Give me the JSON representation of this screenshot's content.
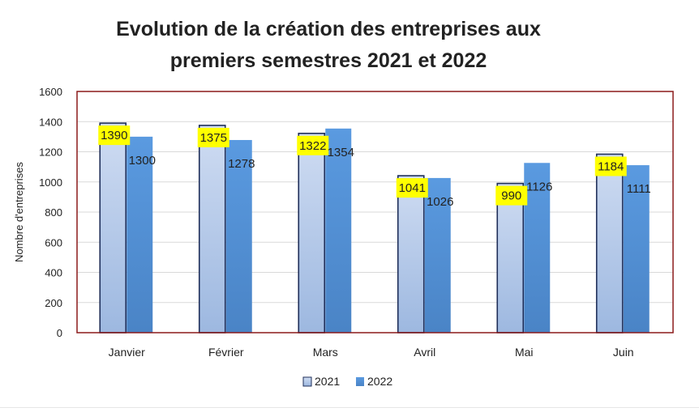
{
  "chart_data": {
    "type": "bar",
    "title_lines": [
      "Evolution de la création des entreprises aux",
      "premiers semestres 2021 et 2022"
    ],
    "ylabel": "Nombre d'entreprises",
    "xlabel": "",
    "categories": [
      "Janvier",
      "Février",
      "Mars",
      "Avril",
      "Mai",
      "Juin"
    ],
    "series": [
      {
        "name": "2021",
        "values": [
          1390,
          1375,
          1322,
          1041,
          990,
          1184
        ],
        "color": "#b7cdea",
        "label_highlight": "#ffff00"
      },
      {
        "name": "2022",
        "values": [
          1300,
          1278,
          1354,
          1026,
          1126,
          1111
        ],
        "color": "#5b9bd5"
      }
    ],
    "ylim": [
      0,
      1600
    ],
    "yticks": [
      "0",
      "200",
      "400",
      "600",
      "800",
      "1000",
      "1200",
      "1400",
      "1600"
    ],
    "grid": true,
    "legend_position": "bottom",
    "plot_border_color": "#8b1a1a"
  }
}
